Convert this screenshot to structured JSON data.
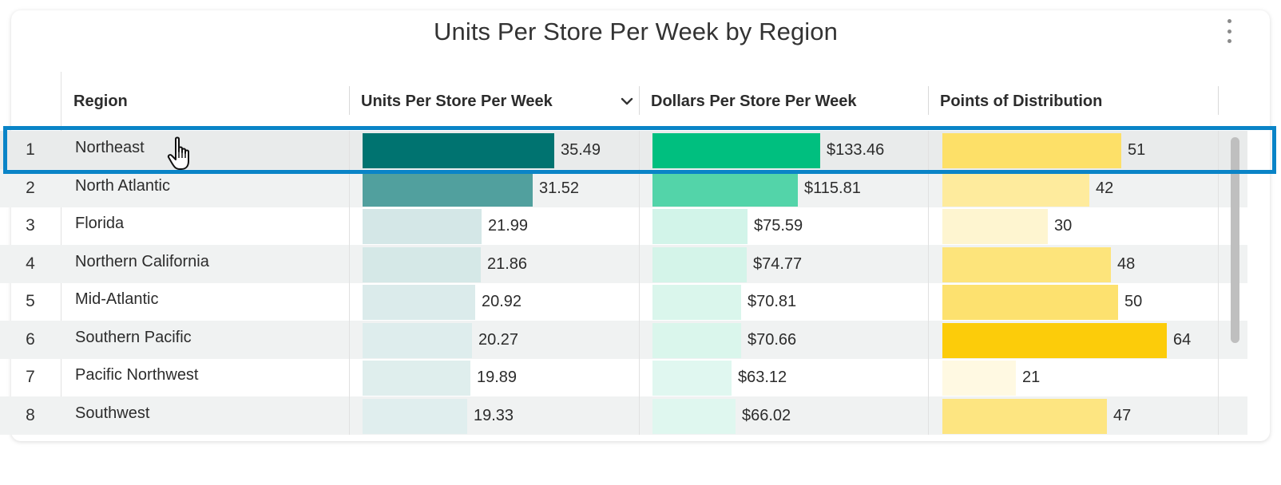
{
  "title": "Units Per Store Per Week by Region",
  "columns": {
    "region": "Region",
    "units": "Units Per Store Per Week",
    "dollars": "Dollars Per Store Per Week",
    "pod": "Points of Distribution"
  },
  "icons": {
    "menu": "more-vertical-icon",
    "sort": "chevron-down-icon",
    "cursor": "hand-pointer-icon"
  },
  "colors": {
    "selection": "#0a84c7",
    "units_max": "#007370",
    "dollars_max": "#00bf7f",
    "pod_max": "#fccc0a"
  },
  "selected_row": 1,
  "rows": [
    {
      "idx": "1",
      "region": "Northeast",
      "units": "35.49",
      "dollars": "$133.46",
      "pod": "51"
    },
    {
      "idx": "2",
      "region": "North Atlantic",
      "units": "31.52",
      "dollars": "$115.81",
      "pod": "42"
    },
    {
      "idx": "3",
      "region": "Florida",
      "units": "21.99",
      "dollars": "$75.59",
      "pod": "30"
    },
    {
      "idx": "4",
      "region": "Northern California",
      "units": "21.86",
      "dollars": "$74.77",
      "pod": "48"
    },
    {
      "idx": "5",
      "region": "Mid-Atlantic",
      "units": "20.92",
      "dollars": "$70.81",
      "pod": "50"
    },
    {
      "idx": "6",
      "region": "Southern Pacific",
      "units": "20.27",
      "dollars": "$70.66",
      "pod": "64"
    },
    {
      "idx": "7",
      "region": "Pacific Northwest",
      "units": "19.89",
      "dollars": "$63.12",
      "pod": "21"
    },
    {
      "idx": "8",
      "region": "Southwest",
      "units": "19.33",
      "dollars": "$66.02",
      "pod": "47"
    }
  ]
}
